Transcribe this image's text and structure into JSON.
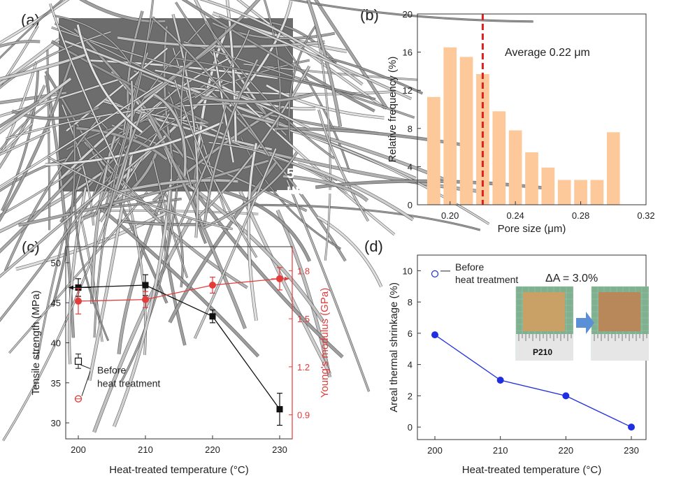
{
  "labels": {
    "a": "(a)",
    "b": "(b)",
    "c": "(c)",
    "d": "(d)"
  },
  "sem": {
    "scale": "5 μm"
  },
  "chart_data": [
    {
      "id": "b",
      "type": "bar",
      "x": [
        0.19,
        0.2,
        0.21,
        0.22,
        0.23,
        0.24,
        0.25,
        0.26,
        0.27,
        0.28,
        0.29,
        0.3
      ],
      "values": [
        11.3,
        16.5,
        15.5,
        13.7,
        9.8,
        7.8,
        5.5,
        3.9,
        2.6,
        2.6,
        2.6,
        7.6
      ],
      "xlabel": "Pore size (μm)",
      "ylabel": "Relative frequency (%)",
      "xlim": [
        0.18,
        0.32
      ],
      "ylim": [
        0,
        20
      ],
      "xticks": [
        "0.20",
        "0.24",
        "0.28",
        "0.32"
      ],
      "yticks": [
        "0",
        "4",
        "8",
        "12",
        "16",
        "20"
      ],
      "average_line": 0.22,
      "annotation": "Average 0.22 μm",
      "colors": {
        "bar": "#fdc99b",
        "line": "#e02020"
      }
    },
    {
      "id": "c",
      "type": "line",
      "xlabel": "Heat-treated temperature (°C)",
      "ylabel_left": "Tensile strength (MPa)",
      "ylabel_right": "Young's modulus (GPa)",
      "x": [
        200,
        210,
        220,
        230
      ],
      "xticks": [
        "200",
        "210",
        "220",
        "230"
      ],
      "ylim_left": [
        28,
        52
      ],
      "yticks_left": [
        "30",
        "35",
        "40",
        "45",
        "50"
      ],
      "ylim_right": [
        0.75,
        1.95
      ],
      "yticks_right": [
        "0.9",
        "1.2",
        "1.5",
        "1.8"
      ],
      "series": [
        {
          "axis": "left",
          "marker": "square",
          "color": "#111111",
          "values": [
            46.9,
            47.2,
            43.3,
            31.7
          ],
          "errors": [
            1.1,
            1.3,
            0.8,
            2.0
          ]
        },
        {
          "axis": "right",
          "marker": "circle",
          "color": "#e43b3b",
          "values": [
            1.61,
            1.62,
            1.71,
            1.75
          ],
          "errors": [
            0.08,
            0.05,
            0.05,
            0.07
          ]
        }
      ],
      "before": {
        "label_line1": "Before",
        "label_line2": "heat treatment",
        "tensile": 37.7,
        "tensile_err": 0.9,
        "modulus": 1.0,
        "modulus_err": 0.01
      }
    },
    {
      "id": "d",
      "type": "line",
      "xlabel": "Heat-treated temperature (°C)",
      "ylabel": "Areal thermal shrinkage (%)",
      "x": [
        200,
        210,
        220,
        230
      ],
      "values": [
        5.9,
        3.0,
        2.0,
        0.0
      ],
      "xticks": [
        "200",
        "210",
        "220",
        "230"
      ],
      "yticks": [
        "0",
        "2",
        "4",
        "6",
        "8",
        "10"
      ],
      "ylim": [
        -0.8,
        11
      ],
      "color": "#1f2ee0",
      "before": {
        "label_line1": "Before",
        "label_line2": "heat treatment",
        "value": 9.8
      },
      "inset": {
        "title": "ΔA = 3.0%",
        "sample": "P210"
      }
    }
  ]
}
